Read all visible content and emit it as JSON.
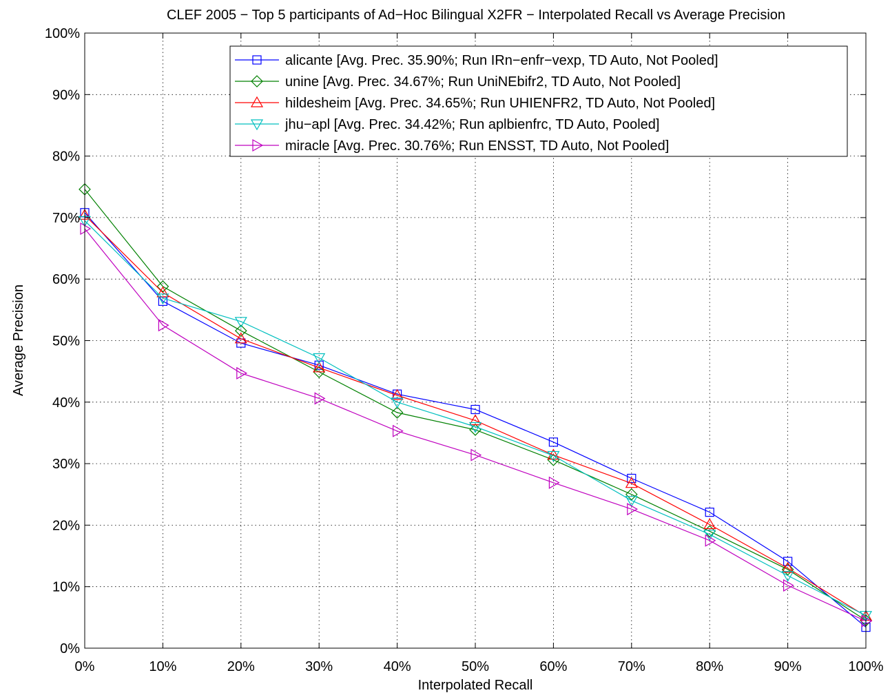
{
  "chart_data": {
    "type": "line",
    "title": "CLEF 2005 − Top 5 participants of Ad−Hoc Bilingual X2FR − Interpolated Recall vs Average Precision",
    "xlabel": "Interpolated Recall",
    "ylabel": "Average Precision",
    "x": [
      0,
      10,
      20,
      30,
      40,
      50,
      60,
      70,
      80,
      90,
      100
    ],
    "x_tick_labels": [
      "0%",
      "10%",
      "20%",
      "30%",
      "40%",
      "50%",
      "60%",
      "70%",
      "80%",
      "90%",
      "100%"
    ],
    "y_tick_labels": [
      "0%",
      "10%",
      "20%",
      "30%",
      "40%",
      "50%",
      "60%",
      "70%",
      "80%",
      "90%",
      "100%"
    ],
    "xlim": [
      0,
      100
    ],
    "ylim": [
      0,
      100
    ],
    "grid": true,
    "legend_position": "top-right",
    "series": [
      {
        "name": "alicante [Avg. Prec. 35.90%; Run IRn−enfr−vexp, TD Auto, Not Pooled]",
        "color": "#0000ff",
        "marker": "square",
        "values": [
          70.8,
          56.4,
          49.6,
          46.0,
          41.3,
          38.8,
          33.5,
          27.6,
          22.1,
          14.1,
          3.4
        ]
      },
      {
        "name": "unine [Avg. Prec. 34.67%; Run UniNEbifr2, TD Auto, Not Pooled]",
        "color": "#008000",
        "marker": "diamond",
        "values": [
          74.6,
          58.8,
          51.6,
          44.9,
          38.3,
          35.5,
          30.6,
          25.0,
          19.0,
          12.8,
          4.5
        ]
      },
      {
        "name": "hildesheim [Avg. Prec. 34.65%; Run UHIENFR2, TD Auto, Not Pooled]",
        "color": "#ff0000",
        "marker": "triangle-up",
        "values": [
          70.4,
          57.8,
          50.3,
          45.6,
          41.1,
          37.0,
          31.4,
          26.8,
          20.1,
          13.0,
          5.2
        ]
      },
      {
        "name": "jhu−apl [Avg. Prec. 34.42%; Run aplbienfrc, TD Auto, Pooled]",
        "color": "#00bfbf",
        "marker": "triangle-down",
        "values": [
          69.5,
          56.9,
          53.1,
          47.2,
          40.0,
          36.0,
          31.3,
          24.0,
          18.5,
          11.8,
          5.3
        ]
      },
      {
        "name": "miracle [Avg. Prec. 30.76%; Run ENSST, TD Auto, Not Pooled]",
        "color": "#bf00bf",
        "marker": "triangle-right",
        "values": [
          68.2,
          52.5,
          44.7,
          40.6,
          35.3,
          31.4,
          26.9,
          22.6,
          17.5,
          10.2,
          4.4
        ]
      }
    ]
  }
}
